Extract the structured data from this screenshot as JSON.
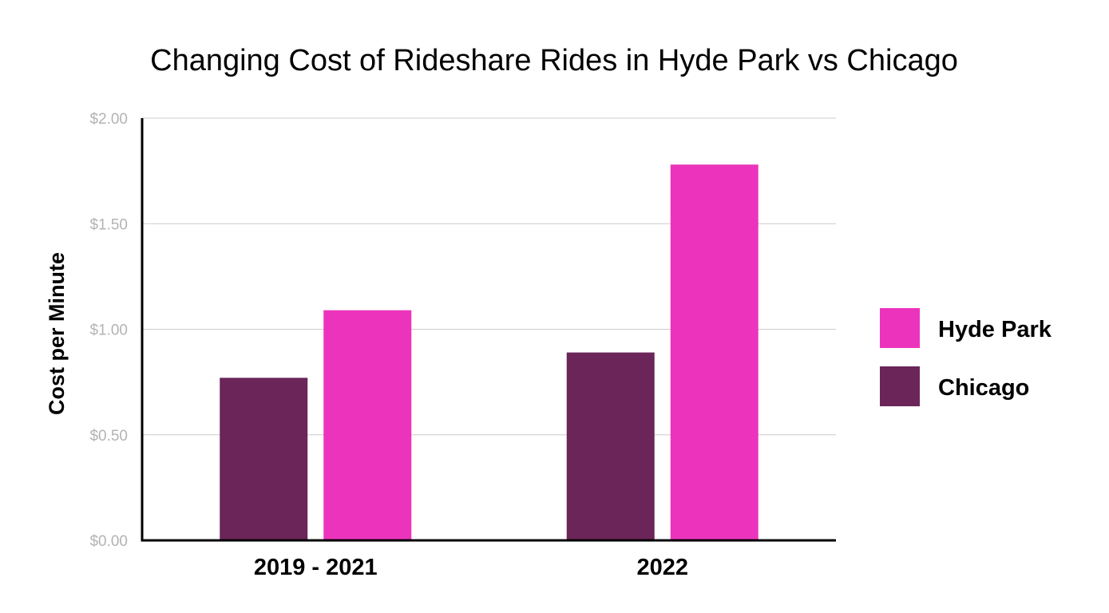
{
  "chart_data": {
    "type": "bar",
    "title": "Changing Cost of Rideshare Rides in Hyde Park vs Chicago",
    "xlabel": "",
    "ylabel": "Cost per Minute",
    "categories": [
      "2019 - 2021",
      "2022"
    ],
    "series": [
      {
        "name": "Chicago",
        "color": "#6b2559",
        "values": [
          0.77,
          0.89
        ]
      },
      {
        "name": "Hyde Park",
        "color": "#eb34bb",
        "values": [
          1.09,
          1.78
        ]
      }
    ],
    "ylim": [
      0,
      2
    ],
    "yticks": [
      0,
      0.5,
      1,
      1.5,
      2
    ],
    "ytick_labels": [
      "$0.00",
      "$0.50",
      "$1.00",
      "$1.50",
      "$2.00"
    ],
    "grid": true,
    "legend": {
      "position": "right",
      "items": [
        {
          "name": "Hyde Park",
          "color": "#eb34bb"
        },
        {
          "name": "Chicago",
          "color": "#6b2559"
        }
      ]
    }
  }
}
